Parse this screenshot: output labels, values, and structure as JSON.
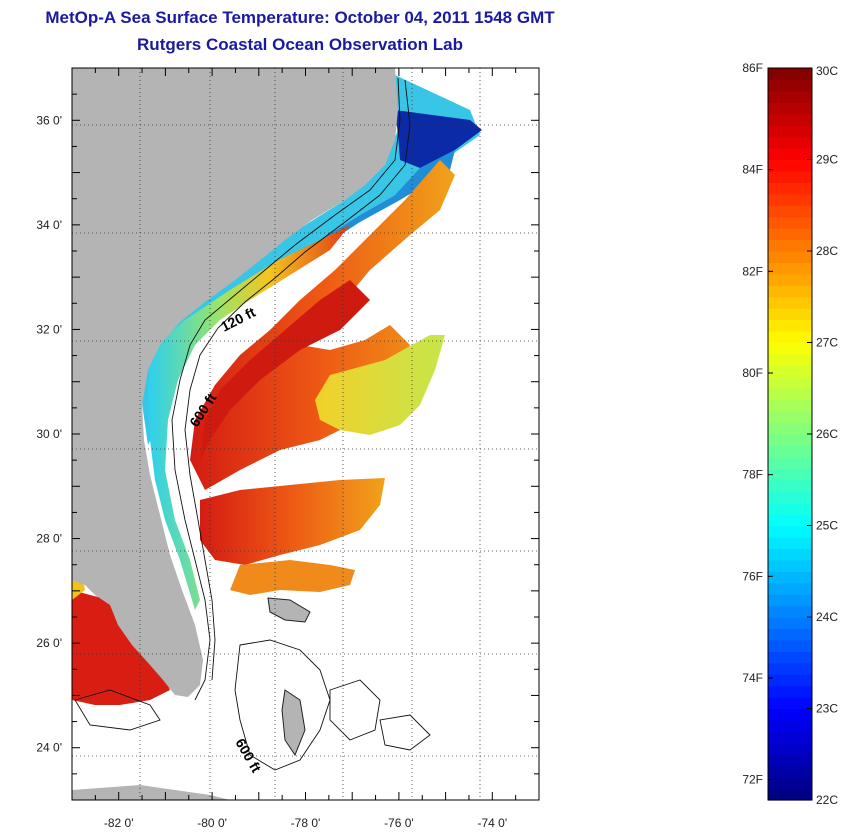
{
  "title": "MetOp-A Sea Surface Temperature:  October 04, 2011 1548 GMT",
  "subtitle": "Rutgers Coastal Ocean Observation Lab",
  "map": {
    "lon_ticks": [
      "-82 0'",
      "-80 0'",
      "-78 0'",
      "-76 0'",
      "-74 0'"
    ],
    "lat_ticks": [
      "36 0'",
      "34 0'",
      "32 0'",
      "30 0'",
      "28 0'",
      "26 0'",
      "24 0'"
    ],
    "lon_range": [
      -83,
      -73
    ],
    "lat_range": [
      23,
      37
    ],
    "contour_labels": [
      "120 ft",
      "600 ft",
      "600 ft"
    ],
    "land_color": "#b4b4b4",
    "grid": "dotted"
  },
  "colorbar": {
    "fahrenheit_labels": [
      "86F",
      "84F",
      "82F",
      "80F",
      "78F",
      "76F",
      "74F",
      "72F"
    ],
    "celsius_labels": [
      "30C",
      "29C",
      "28C",
      "27C",
      "26C",
      "25C",
      "24C",
      "23C",
      "22C"
    ],
    "range_c": [
      22,
      30
    ],
    "colormap": "jet"
  }
}
